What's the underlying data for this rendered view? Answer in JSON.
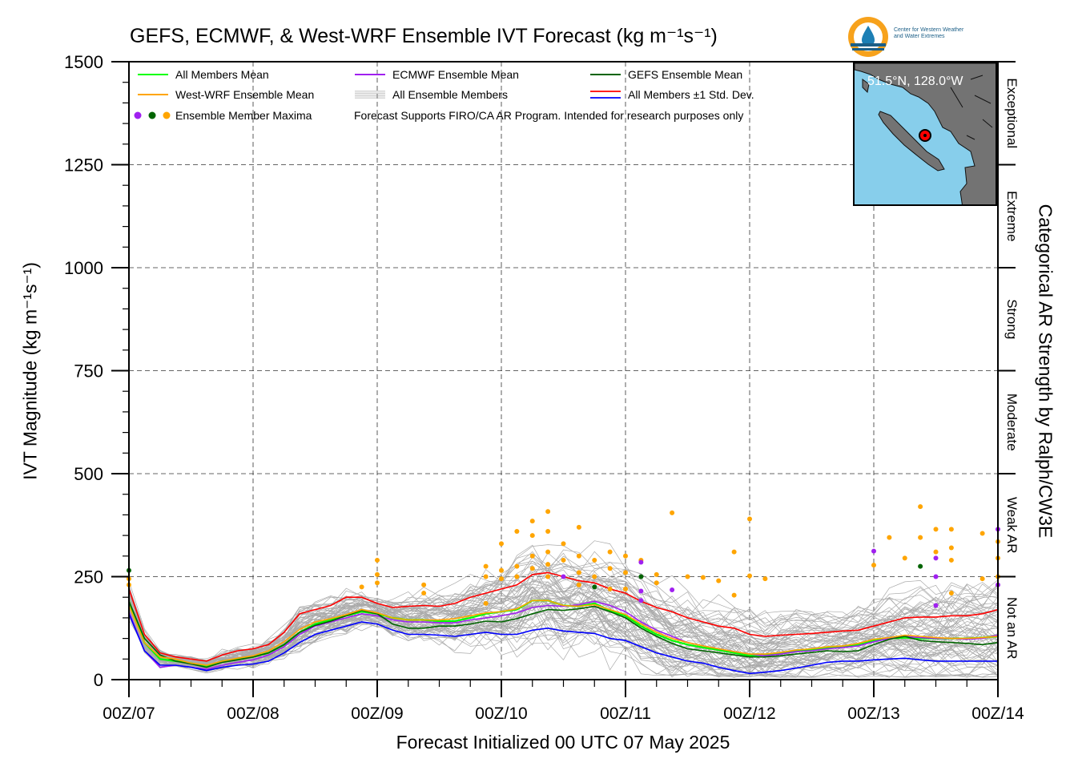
{
  "title": "GEFS, ECMWF, & West-WRF Ensemble IVT Forecast (kg m⁻¹s⁻¹)",
  "ylabel": "IVT Magnitude (kg m⁻¹s⁻¹)",
  "xlabel": "Forecast Initialized 00 UTC 07 May 2025",
  "right_label": "Categorical AR Strength by Ralph/CW3E",
  "logo": {
    "line1": "Center for Western Weather",
    "line2": "and Water Extremes"
  },
  "inset": {
    "label": "51.5°N, 128.0°W"
  },
  "legend": {
    "items": [
      {
        "label": "All Members Mean",
        "color": "#00ff00"
      },
      {
        "label": "ECMWF Ensemble Mean",
        "color": "#a020f0"
      },
      {
        "label": "GEFS Ensemble Mean",
        "color": "#006400"
      },
      {
        "label": "West-WRF Ensemble Mean",
        "color": "#ffa500"
      },
      {
        "label": "All Ensemble Members",
        "color": "#aaaaaa"
      },
      {
        "label": "All Members ±1 Std. Dev.",
        "color": "#ff0000"
      },
      {
        "label": "Ensemble Member Maxima",
        "color": "#ffa500"
      }
    ],
    "note": "Forecast Supports FIRO/CA AR Program. Intended for research purposes only"
  },
  "chart_data": {
    "type": "line",
    "x_unit": "forecast hour from 00Z/07 May 2025",
    "xlim": [
      0,
      168
    ],
    "ylim": [
      0,
      1500
    ],
    "grid": true,
    "legend_position": "top-left",
    "x_ticks": [
      {
        "x": 0,
        "label": "00Z/07"
      },
      {
        "x": 24,
        "label": "00Z/08"
      },
      {
        "x": 48,
        "label": "00Z/09"
      },
      {
        "x": 72,
        "label": "00Z/10"
      },
      {
        "x": 96,
        "label": "00Z/11"
      },
      {
        "x": 120,
        "label": "00Z/12"
      },
      {
        "x": 144,
        "label": "00Z/13"
      },
      {
        "x": 168,
        "label": "00Z/14"
      }
    ],
    "y_ticks": [
      0,
      250,
      500,
      750,
      1000,
      1250,
      1500
    ],
    "categories_right": [
      {
        "label": "Not an AR",
        "range": [
          0,
          250
        ]
      },
      {
        "label": "Weak AR",
        "range": [
          250,
          500
        ]
      },
      {
        "label": "Moderate",
        "range": [
          500,
          750
        ]
      },
      {
        "label": "Strong",
        "range": [
          750,
          1000
        ]
      },
      {
        "label": "Extreme",
        "range": [
          1000,
          1250
        ]
      },
      {
        "label": "Exceptional",
        "range": [
          1250,
          1500
        ]
      }
    ],
    "x": [
      0,
      3,
      6,
      9,
      12,
      15,
      18,
      21,
      24,
      27,
      30,
      33,
      36,
      39,
      42,
      45,
      48,
      51,
      54,
      57,
      60,
      63,
      66,
      69,
      72,
      75,
      78,
      81,
      84,
      87,
      90,
      93,
      96,
      99,
      102,
      105,
      108,
      111,
      114,
      117,
      120,
      123,
      126,
      129,
      132,
      135,
      138,
      141,
      144,
      147,
      150,
      153,
      156,
      159,
      162,
      165,
      168
    ],
    "series": [
      {
        "name": "All Members Mean",
        "color": "#00ff00",
        "values": [
          190,
          90,
          50,
          45,
          40,
          32,
          45,
          50,
          55,
          65,
          85,
          115,
          135,
          145,
          155,
          165,
          160,
          150,
          145,
          145,
          142,
          142,
          150,
          160,
          165,
          170,
          192,
          192,
          180,
          178,
          185,
          168,
          155,
          130,
          110,
          95,
          85,
          78,
          72,
          65,
          58,
          60,
          65,
          70,
          72,
          78,
          80,
          85,
          95,
          100,
          102,
          100,
          100,
          100,
          100,
          102,
          105
        ]
      },
      {
        "name": "ECMWF Ensemble Mean",
        "color": "#a020f0",
        "values": [
          165,
          70,
          30,
          35,
          30,
          25,
          35,
          42,
          48,
          60,
          80,
          110,
          130,
          140,
          150,
          160,
          155,
          145,
          140,
          140,
          138,
          138,
          145,
          150,
          155,
          162,
          175,
          180,
          178,
          182,
          190,
          180,
          165,
          140,
          120,
          105,
          90,
          82,
          75,
          68,
          62,
          58,
          62,
          68,
          70,
          75,
          78,
          82,
          92,
          100,
          105,
          102,
          100,
          100,
          98,
          100,
          108
        ]
      },
      {
        "name": "GEFS Ensemble Mean",
        "color": "#006400",
        "values": [
          190,
          100,
          60,
          45,
          38,
          30,
          42,
          48,
          55,
          65,
          85,
          115,
          132,
          142,
          155,
          168,
          160,
          135,
          125,
          125,
          130,
          130,
          135,
          142,
          140,
          148,
          160,
          170,
          168,
          172,
          178,
          165,
          150,
          125,
          105,
          88,
          75,
          70,
          65,
          60,
          55,
          55,
          58,
          62,
          66,
          70,
          68,
          70,
          85,
          98,
          105,
          95,
          92,
          90,
          88,
          85,
          90
        ]
      },
      {
        "name": "West-WRF Ensemble Mean",
        "color": "#ffa500",
        "values": [
          180,
          90,
          55,
          50,
          40,
          35,
          45,
          52,
          58,
          70,
          92,
          122,
          140,
          148,
          158,
          170,
          162,
          150,
          145,
          145,
          145,
          148,
          155,
          162,
          165,
          172,
          192,
          192,
          180,
          178,
          182,
          170,
          158,
          135,
          115,
          100,
          90,
          82,
          75,
          68,
          62,
          62,
          66,
          72,
          75,
          80,
          82,
          88,
          98,
          102,
          108,
          105,
          102,
          100,
          100,
          102,
          105
        ]
      },
      {
        "name": "All Members +1 Std. Dev.",
        "color": "#ff0000",
        "values": [
          220,
          110,
          65,
          55,
          50,
          45,
          60,
          70,
          75,
          85,
          115,
          160,
          170,
          180,
          200,
          200,
          185,
          175,
          178,
          180,
          178,
          185,
          200,
          210,
          220,
          230,
          255,
          260,
          250,
          240,
          235,
          220,
          210,
          190,
          175,
          165,
          150,
          140,
          130,
          125,
          110,
          105,
          108,
          110,
          112,
          115,
          118,
          120,
          130,
          140,
          150,
          152,
          152,
          155,
          155,
          160,
          170
        ]
      },
      {
        "name": "All Members -1 Std. Dev.",
        "color": "#0000ff",
        "values": [
          160,
          70,
          35,
          35,
          30,
          22,
          30,
          35,
          38,
          45,
          65,
          90,
          110,
          120,
          130,
          140,
          135,
          120,
          110,
          110,
          108,
          105,
          110,
          115,
          110,
          110,
          120,
          125,
          118,
          115,
          112,
          100,
          95,
          80,
          65,
          55,
          45,
          40,
          30,
          22,
          15,
          18,
          22,
          28,
          35,
          42,
          45,
          45,
          48,
          50,
          52,
          48,
          45,
          45,
          45,
          45,
          45
        ]
      }
    ],
    "member_maxima": [
      {
        "x": 0,
        "y": 265,
        "color": "#006400"
      },
      {
        "x": 0,
        "y": 245,
        "color": "#ffa500"
      },
      {
        "x": 0,
        "y": 230,
        "color": "#ffa500"
      },
      {
        "x": 48,
        "y": 290,
        "color": "#ffa500"
      },
      {
        "x": 48,
        "y": 255,
        "color": "#ffa500"
      },
      {
        "x": 48,
        "y": 235,
        "color": "#ffa500"
      },
      {
        "x": 45,
        "y": 225,
        "color": "#ffa500"
      },
      {
        "x": 57,
        "y": 230,
        "color": "#ffa500"
      },
      {
        "x": 57,
        "y": 210,
        "color": "#ffa500"
      },
      {
        "x": 69,
        "y": 275,
        "color": "#ffa500"
      },
      {
        "x": 69,
        "y": 250,
        "color": "#ffa500"
      },
      {
        "x": 69,
        "y": 185,
        "color": "#ffa500"
      },
      {
        "x": 72,
        "y": 330,
        "color": "#ffa500"
      },
      {
        "x": 72,
        "y": 265,
        "color": "#ffa500"
      },
      {
        "x": 72,
        "y": 245,
        "color": "#ffa500"
      },
      {
        "x": 75,
        "y": 360,
        "color": "#ffa500"
      },
      {
        "x": 75,
        "y": 275,
        "color": "#ffa500"
      },
      {
        "x": 75,
        "y": 250,
        "color": "#ffa500"
      },
      {
        "x": 78,
        "y": 385,
        "color": "#ffa500"
      },
      {
        "x": 78,
        "y": 350,
        "color": "#ffa500"
      },
      {
        "x": 78,
        "y": 300,
        "color": "#ffa500"
      },
      {
        "x": 78,
        "y": 270,
        "color": "#ffa500"
      },
      {
        "x": 81,
        "y": 408,
        "color": "#ffa500"
      },
      {
        "x": 81,
        "y": 360,
        "color": "#ffa500"
      },
      {
        "x": 81,
        "y": 310,
        "color": "#ffa500"
      },
      {
        "x": 81,
        "y": 280,
        "color": "#ffa500"
      },
      {
        "x": 81,
        "y": 250,
        "color": "#ffa500"
      },
      {
        "x": 84,
        "y": 330,
        "color": "#ffa500"
      },
      {
        "x": 84,
        "y": 290,
        "color": "#ffa500"
      },
      {
        "x": 84,
        "y": 250,
        "color": "#a020f0"
      },
      {
        "x": 87,
        "y": 370,
        "color": "#ffa500"
      },
      {
        "x": 87,
        "y": 300,
        "color": "#ffa500"
      },
      {
        "x": 87,
        "y": 260,
        "color": "#ffa500"
      },
      {
        "x": 87,
        "y": 230,
        "color": "#ffa500"
      },
      {
        "x": 90,
        "y": 290,
        "color": "#ffa500"
      },
      {
        "x": 90,
        "y": 250,
        "color": "#ffa500"
      },
      {
        "x": 90,
        "y": 225,
        "color": "#006400"
      },
      {
        "x": 93,
        "y": 310,
        "color": "#ffa500"
      },
      {
        "x": 93,
        "y": 270,
        "color": "#ffa500"
      },
      {
        "x": 93,
        "y": 220,
        "color": "#ffa500"
      },
      {
        "x": 96,
        "y": 300,
        "color": "#ffa500"
      },
      {
        "x": 96,
        "y": 260,
        "color": "#ffa500"
      },
      {
        "x": 96,
        "y": 220,
        "color": "#ffa500"
      },
      {
        "x": 99,
        "y": 290,
        "color": "#ffa500"
      },
      {
        "x": 99,
        "y": 285,
        "color": "#a020f0"
      },
      {
        "x": 99,
        "y": 250,
        "color": "#006400"
      },
      {
        "x": 99,
        "y": 215,
        "color": "#a020f0"
      },
      {
        "x": 99,
        "y": 192,
        "color": "#a020f0"
      },
      {
        "x": 102,
        "y": 255,
        "color": "#ffa500"
      },
      {
        "x": 102,
        "y": 235,
        "color": "#ffa500"
      },
      {
        "x": 105,
        "y": 218,
        "color": "#a020f0"
      },
      {
        "x": 105,
        "y": 405,
        "color": "#ffa500"
      },
      {
        "x": 108,
        "y": 250,
        "color": "#ffa500"
      },
      {
        "x": 111,
        "y": 248,
        "color": "#ffa500"
      },
      {
        "x": 114,
        "y": 240,
        "color": "#ffa500"
      },
      {
        "x": 117,
        "y": 310,
        "color": "#ffa500"
      },
      {
        "x": 117,
        "y": 205,
        "color": "#ffa500"
      },
      {
        "x": 120,
        "y": 390,
        "color": "#ffa500"
      },
      {
        "x": 120,
        "y": 252,
        "color": "#ffa500"
      },
      {
        "x": 123,
        "y": 245,
        "color": "#ffa500"
      },
      {
        "x": 144,
        "y": 312,
        "color": "#a020f0"
      },
      {
        "x": 144,
        "y": 278,
        "color": "#ffa500"
      },
      {
        "x": 147,
        "y": 345,
        "color": "#ffa500"
      },
      {
        "x": 150,
        "y": 295,
        "color": "#ffa500"
      },
      {
        "x": 153,
        "y": 420,
        "color": "#ffa500"
      },
      {
        "x": 153,
        "y": 345,
        "color": "#ffa500"
      },
      {
        "x": 153,
        "y": 275,
        "color": "#006400"
      },
      {
        "x": 156,
        "y": 365,
        "color": "#ffa500"
      },
      {
        "x": 156,
        "y": 310,
        "color": "#ffa500"
      },
      {
        "x": 156,
        "y": 295,
        "color": "#a020f0"
      },
      {
        "x": 156,
        "y": 250,
        "color": "#a020f0"
      },
      {
        "x": 156,
        "y": 180,
        "color": "#a020f0"
      },
      {
        "x": 159,
        "y": 365,
        "color": "#ffa500"
      },
      {
        "x": 159,
        "y": 320,
        "color": "#ffa500"
      },
      {
        "x": 159,
        "y": 290,
        "color": "#ffa500"
      },
      {
        "x": 159,
        "y": 210,
        "color": "#ffa500"
      },
      {
        "x": 165,
        "y": 355,
        "color": "#ffa500"
      },
      {
        "x": 165,
        "y": 245,
        "color": "#ffa500"
      },
      {
        "x": 168,
        "y": 365,
        "color": "#a020f0"
      },
      {
        "x": 168,
        "y": 335,
        "color": "#ffa500"
      },
      {
        "x": 168,
        "y": 295,
        "color": "#ffa500"
      },
      {
        "x": 168,
        "y": 250,
        "color": "#ffa500"
      },
      {
        "x": 168,
        "y": 230,
        "color": "#a020f0"
      }
    ]
  }
}
